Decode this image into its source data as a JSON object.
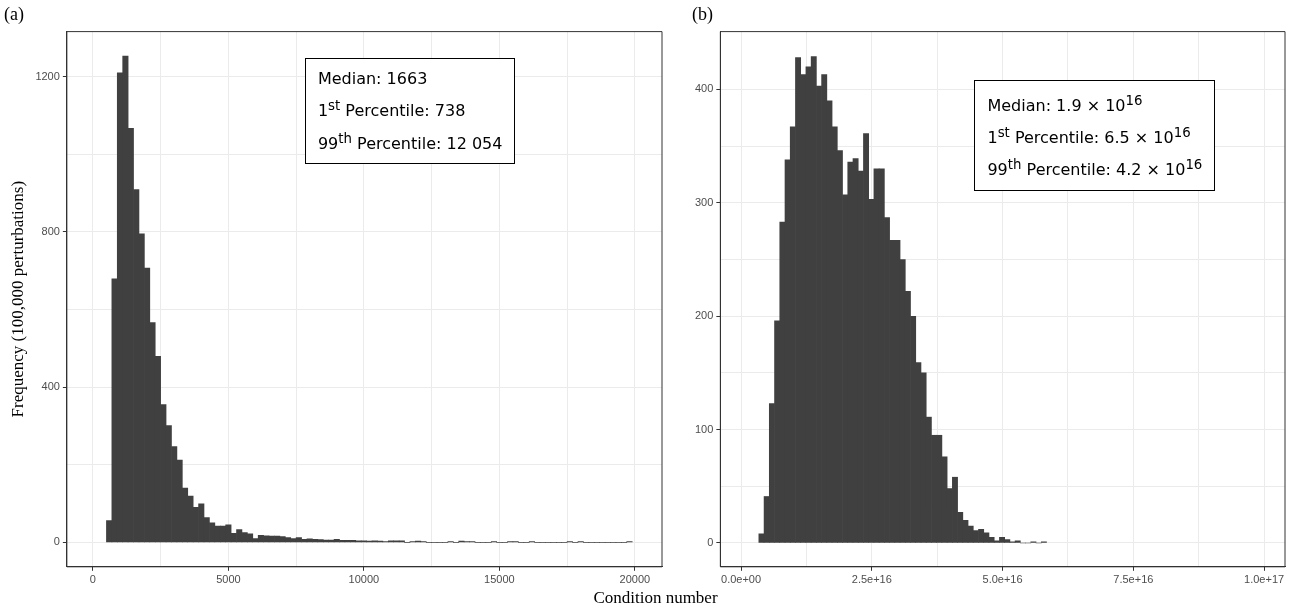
{
  "chart_data": [
    {
      "type": "histogram",
      "title": "(a)",
      "xlabel": "Condition number",
      "ylabel": "Frequency (100,000 perturbations)",
      "color": "#404040",
      "grid": true,
      "xlim": [
        -960,
        21000
      ],
      "ylim": [
        -63,
        1316
      ],
      "xticks": [
        0,
        {
          "value": 2500,
          "label": null
        },
        5000,
        {
          "value": 7500,
          "label": null
        },
        10000,
        {
          "value": 12500,
          "label": null
        },
        15000,
        {
          "value": 17500,
          "label": null
        },
        20000
      ],
      "yticks": [
        0,
        {
          "value": 200,
          "label": null
        },
        400,
        {
          "value": 600,
          "label": null
        },
        800,
        {
          "value": 1000,
          "label": null
        },
        1200
      ],
      "bins": [
        500,
        700,
        900,
        1100,
        1300,
        1500,
        1700,
        1900,
        2100,
        2300,
        2500,
        2700,
        2900,
        3100,
        3300,
        3500,
        3700,
        3900,
        4100,
        4300,
        4500,
        4700,
        4900,
        5100,
        5300,
        5500,
        5700,
        5900,
        6100,
        6300,
        6500,
        6700,
        6900,
        7100,
        7300,
        7500,
        7700,
        7900,
        8100,
        8300,
        8500,
        8700,
        8900,
        9100,
        9300,
        9500,
        9700,
        9900,
        10100,
        10300,
        10500,
        10700,
        10900,
        11100,
        11300,
        11500,
        11700,
        11900,
        12100,
        12300,
        12500,
        12700,
        12900,
        13100,
        13300,
        13500,
        13700,
        13900,
        14100,
        14300,
        14500,
        14700,
        14900,
        15100,
        15300,
        15500,
        15700,
        15900,
        16100,
        16300,
        16500,
        16700,
        16900,
        17100,
        17300,
        17500,
        17700,
        17900,
        18100,
        18300,
        18500,
        18700,
        18900,
        19100,
        19300,
        19500,
        19700,
        19900
      ],
      "values": [
        56,
        679,
        1210,
        1253,
        1067,
        909,
        795,
        707,
        566,
        479,
        355,
        301,
        247,
        212,
        140,
        119,
        90,
        99,
        64,
        50,
        42,
        42,
        45,
        23,
        33,
        25,
        22,
        10,
        18,
        17,
        16,
        16,
        15,
        12,
        10,
        12,
        8,
        9,
        8,
        7,
        6,
        6,
        8,
        5,
        5,
        5,
        4,
        4,
        3,
        4,
        3,
        2,
        4,
        4,
        4,
        0,
        2,
        3,
        2,
        0,
        0,
        0,
        0,
        2,
        0,
        3,
        2,
        2,
        0,
        0,
        0,
        2,
        0,
        0,
        2,
        2,
        0,
        0,
        2,
        0,
        0,
        0,
        0,
        0,
        0,
        2,
        0,
        2,
        0,
        0,
        0,
        0,
        0,
        0,
        0,
        0,
        2
      ],
      "annotations": [
        "Median: 1663",
        "1$^{st}$  Percentile: 738",
        "99$^{th}$ Percentile: 12 054"
      ]
    },
    {
      "type": "histogram",
      "title": "(b)",
      "color": "#404040",
      "grid": true,
      "xlim": [
        -3960000000000000.0,
        1.04e+17
      ],
      "ylim": [
        -21,
        451
      ],
      "xticks": [
        {
          "value": 0,
          "label": "0.0e+00"
        },
        {
          "value": 1.25e+16,
          "label": null
        },
        {
          "value": 2.5e+16,
          "label": "2.5e+16"
        },
        {
          "value": 3.75e+16,
          "label": null
        },
        {
          "value": 5e+16,
          "label": "5.0e+16"
        },
        {
          "value": 6.25e+16,
          "label": null
        },
        {
          "value": 7.5e+16,
          "label": "7.5e+16"
        },
        {
          "value": 8.75e+16,
          "label": null
        },
        {
          "value": 1e+17,
          "label": "1.0e+17"
        }
      ],
      "yticks": [
        0,
        {
          "value": 50,
          "label": null
        },
        100,
        {
          "value": 150,
          "label": null
        },
        200,
        {
          "value": 250,
          "label": null
        },
        300,
        {
          "value": 350,
          "label": null
        },
        400
      ],
      "bins": [
        3400000000000000.0,
        4400000000000000.0,
        5400000000000000.0,
        6400000000000000.0,
        7400000000000000.0,
        8400000000000000.0,
        9400000000000000.0,
        1.04e+16,
        1.14e+16,
        1.24e+16,
        1.34e+16,
        1.44e+16,
        1.54e+16,
        1.64e+16,
        1.74e+16,
        1.84e+16,
        1.94e+16,
        2.04e+16,
        2.14e+16,
        2.24e+16,
        2.34e+16,
        2.44e+16,
        2.54e+16,
        2.64e+16,
        2.74e+16,
        2.84e+16,
        2.94e+16,
        3.04e+16,
        3.14e+16,
        3.24e+16,
        3.34e+16,
        3.44e+16,
        3.54e+16,
        3.64e+16,
        3.74e+16,
        3.84e+16,
        3.94e+16,
        4.04e+16,
        4.14e+16,
        4.24e+16,
        4.34e+16,
        4.44e+16,
        4.54e+16,
        4.64e+16,
        4.74e+16,
        4.84e+16,
        4.94e+16,
        5.04e+16,
        5.14e+16,
        5.24e+16,
        5.34e+16,
        5.44e+16,
        5.54e+16,
        5.64e+16,
        5.74e+16,
        5.84e+16
      ],
      "values": [
        8,
        41,
        123,
        196,
        283,
        338,
        367,
        428,
        413,
        420,
        429,
        403,
        413,
        390,
        367,
        346,
        307,
        336,
        339,
        328,
        361,
        303,
        330,
        330,
        287,
        267,
        267,
        250,
        222,
        200,
        159,
        150,
        111,
        95,
        95,
        76,
        48,
        58,
        27,
        20,
        15,
        11,
        12,
        9,
        5,
        2,
        5,
        3,
        1,
        2,
        0,
        0,
        1,
        0,
        1
      ],
      "annotations": [
        "Median:  1.9 × 10$^{16}$",
        "1$^{st}$  Percentile: 6.5 × 10$^{16}$",
        "99$^{th}$ Percentile: 4.2 × 10$^{16}$"
      ]
    }
  ]
}
